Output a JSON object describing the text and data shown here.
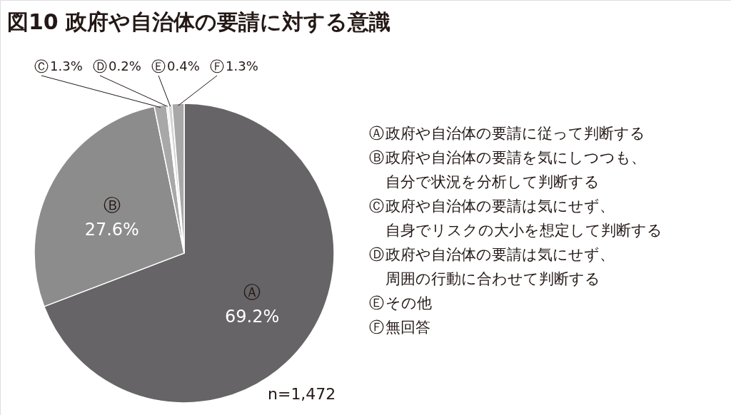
{
  "chart_data": {
    "type": "pie",
    "title": "図10 政府や自治体の要請に対する意識",
    "categories": [
      "Ⓐ",
      "Ⓑ",
      "Ⓒ",
      "Ⓓ",
      "Ⓔ",
      "Ⓕ"
    ],
    "values": [
      69.2,
      27.6,
      1.3,
      0.2,
      0.4,
      1.3
    ],
    "value_labels": [
      "69.2%",
      "27.6%",
      "1.3%",
      "0.2%",
      "0.4%",
      "1.3%"
    ],
    "colors": [
      "#666466",
      "#8c8c8c",
      "#a8a8a8",
      "#e8e8e8",
      "#d4d4d4",
      "#a8a8a8"
    ],
    "annotations": [
      "政府や自治体の要請に従って判断する",
      "政府や自治体の要請を気にしつつも、自分で状況を分析して判断する",
      "政府や自治体の要請は気にせず、自身でリスクの大小を想定して判断する",
      "政府や自治体の要請は気にせず、周囲の行動に合わせて判断する",
      "その他",
      "無回答",
      "n=1,472"
    ]
  }
}
